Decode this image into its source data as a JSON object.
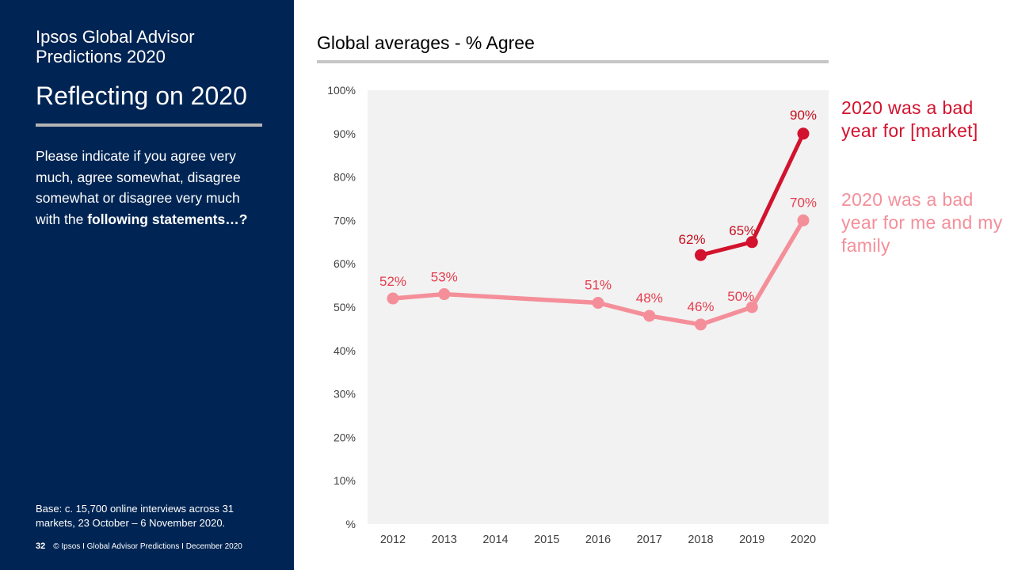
{
  "sidebar": {
    "brand": "Ipsos Global Advisor\nPredictions 2020",
    "title": "Reflecting on 2020",
    "question_regular": "Please indicate if you agree very much, agree somewhat, disagree somewhat or disagree very much with the",
    "question_bold": "following statements…?",
    "base": "Base: c. 15,700 online interviews across 31 markets,  23 October – 6 November 2020.",
    "page_number": "32",
    "footer": "© Ipsos I Global Advisor Predictions I December 2020"
  },
  "chart_heading": "Global averages - % Agree",
  "chart_data": {
    "type": "line",
    "categories": [
      "2012",
      "2013",
      "2014",
      "2015",
      "2016",
      "2017",
      "2018",
      "2019",
      "2020"
    ],
    "ylim": [
      0,
      100
    ],
    "yticks": [
      0,
      10,
      20,
      30,
      40,
      50,
      60,
      70,
      80,
      90,
      100
    ],
    "ytick_labels": [
      "%",
      "10%",
      "20%",
      "30%",
      "40%",
      "50%",
      "60%",
      "70%",
      "80%",
      "90%",
      "100%"
    ],
    "grid": false,
    "background": "#f2f2f2",
    "legend_placement": "right",
    "series": [
      {
        "name": "2020 was a bad year for me and my family",
        "color": "#f48f9a",
        "label_color": "#e63c4d",
        "points": [
          {
            "x": "2012",
            "y": 52,
            "label": "52%"
          },
          {
            "x": "2013",
            "y": 53,
            "label": "53%"
          },
          {
            "x": "2016",
            "y": 51,
            "label": "51%"
          },
          {
            "x": "2017",
            "y": 48,
            "label": "48%"
          },
          {
            "x": "2018",
            "y": 46,
            "label": "46%"
          },
          {
            "x": "2019",
            "y": 50,
            "label": "50%"
          },
          {
            "x": "2020",
            "y": 70,
            "label": "70%"
          }
        ]
      },
      {
        "name": "2020 was a bad year for [market]",
        "color": "#d2122e",
        "label_color": "#c4101f",
        "points": [
          {
            "x": "2018",
            "y": 62,
            "label": "62%"
          },
          {
            "x": "2019",
            "y": 65,
            "label": "65%"
          },
          {
            "x": "2020",
            "y": 90,
            "label": "90%"
          }
        ]
      }
    ]
  }
}
